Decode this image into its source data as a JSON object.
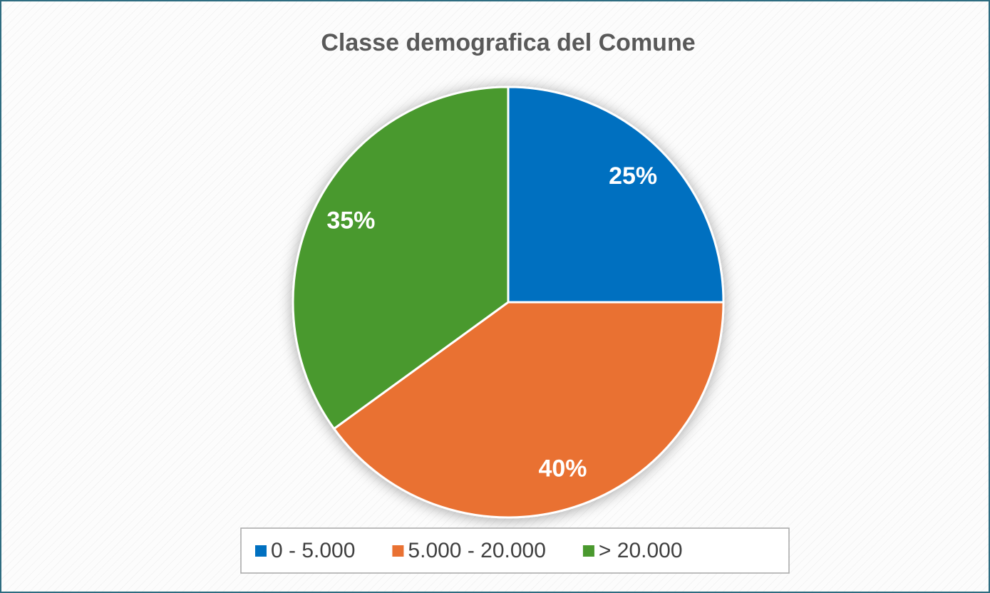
{
  "chart_data": {
    "type": "pie",
    "title": "Classe demografica del Comune",
    "categories": [
      "0 - 5.000",
      "5.000 - 20.000",
      "> 20.000"
    ],
    "values": [
      25,
      40,
      35
    ],
    "value_labels": [
      "25%",
      "40%",
      "35%"
    ],
    "colors": [
      "#0070c0",
      "#e97132",
      "#4a992e"
    ],
    "legend": "bottom"
  }
}
